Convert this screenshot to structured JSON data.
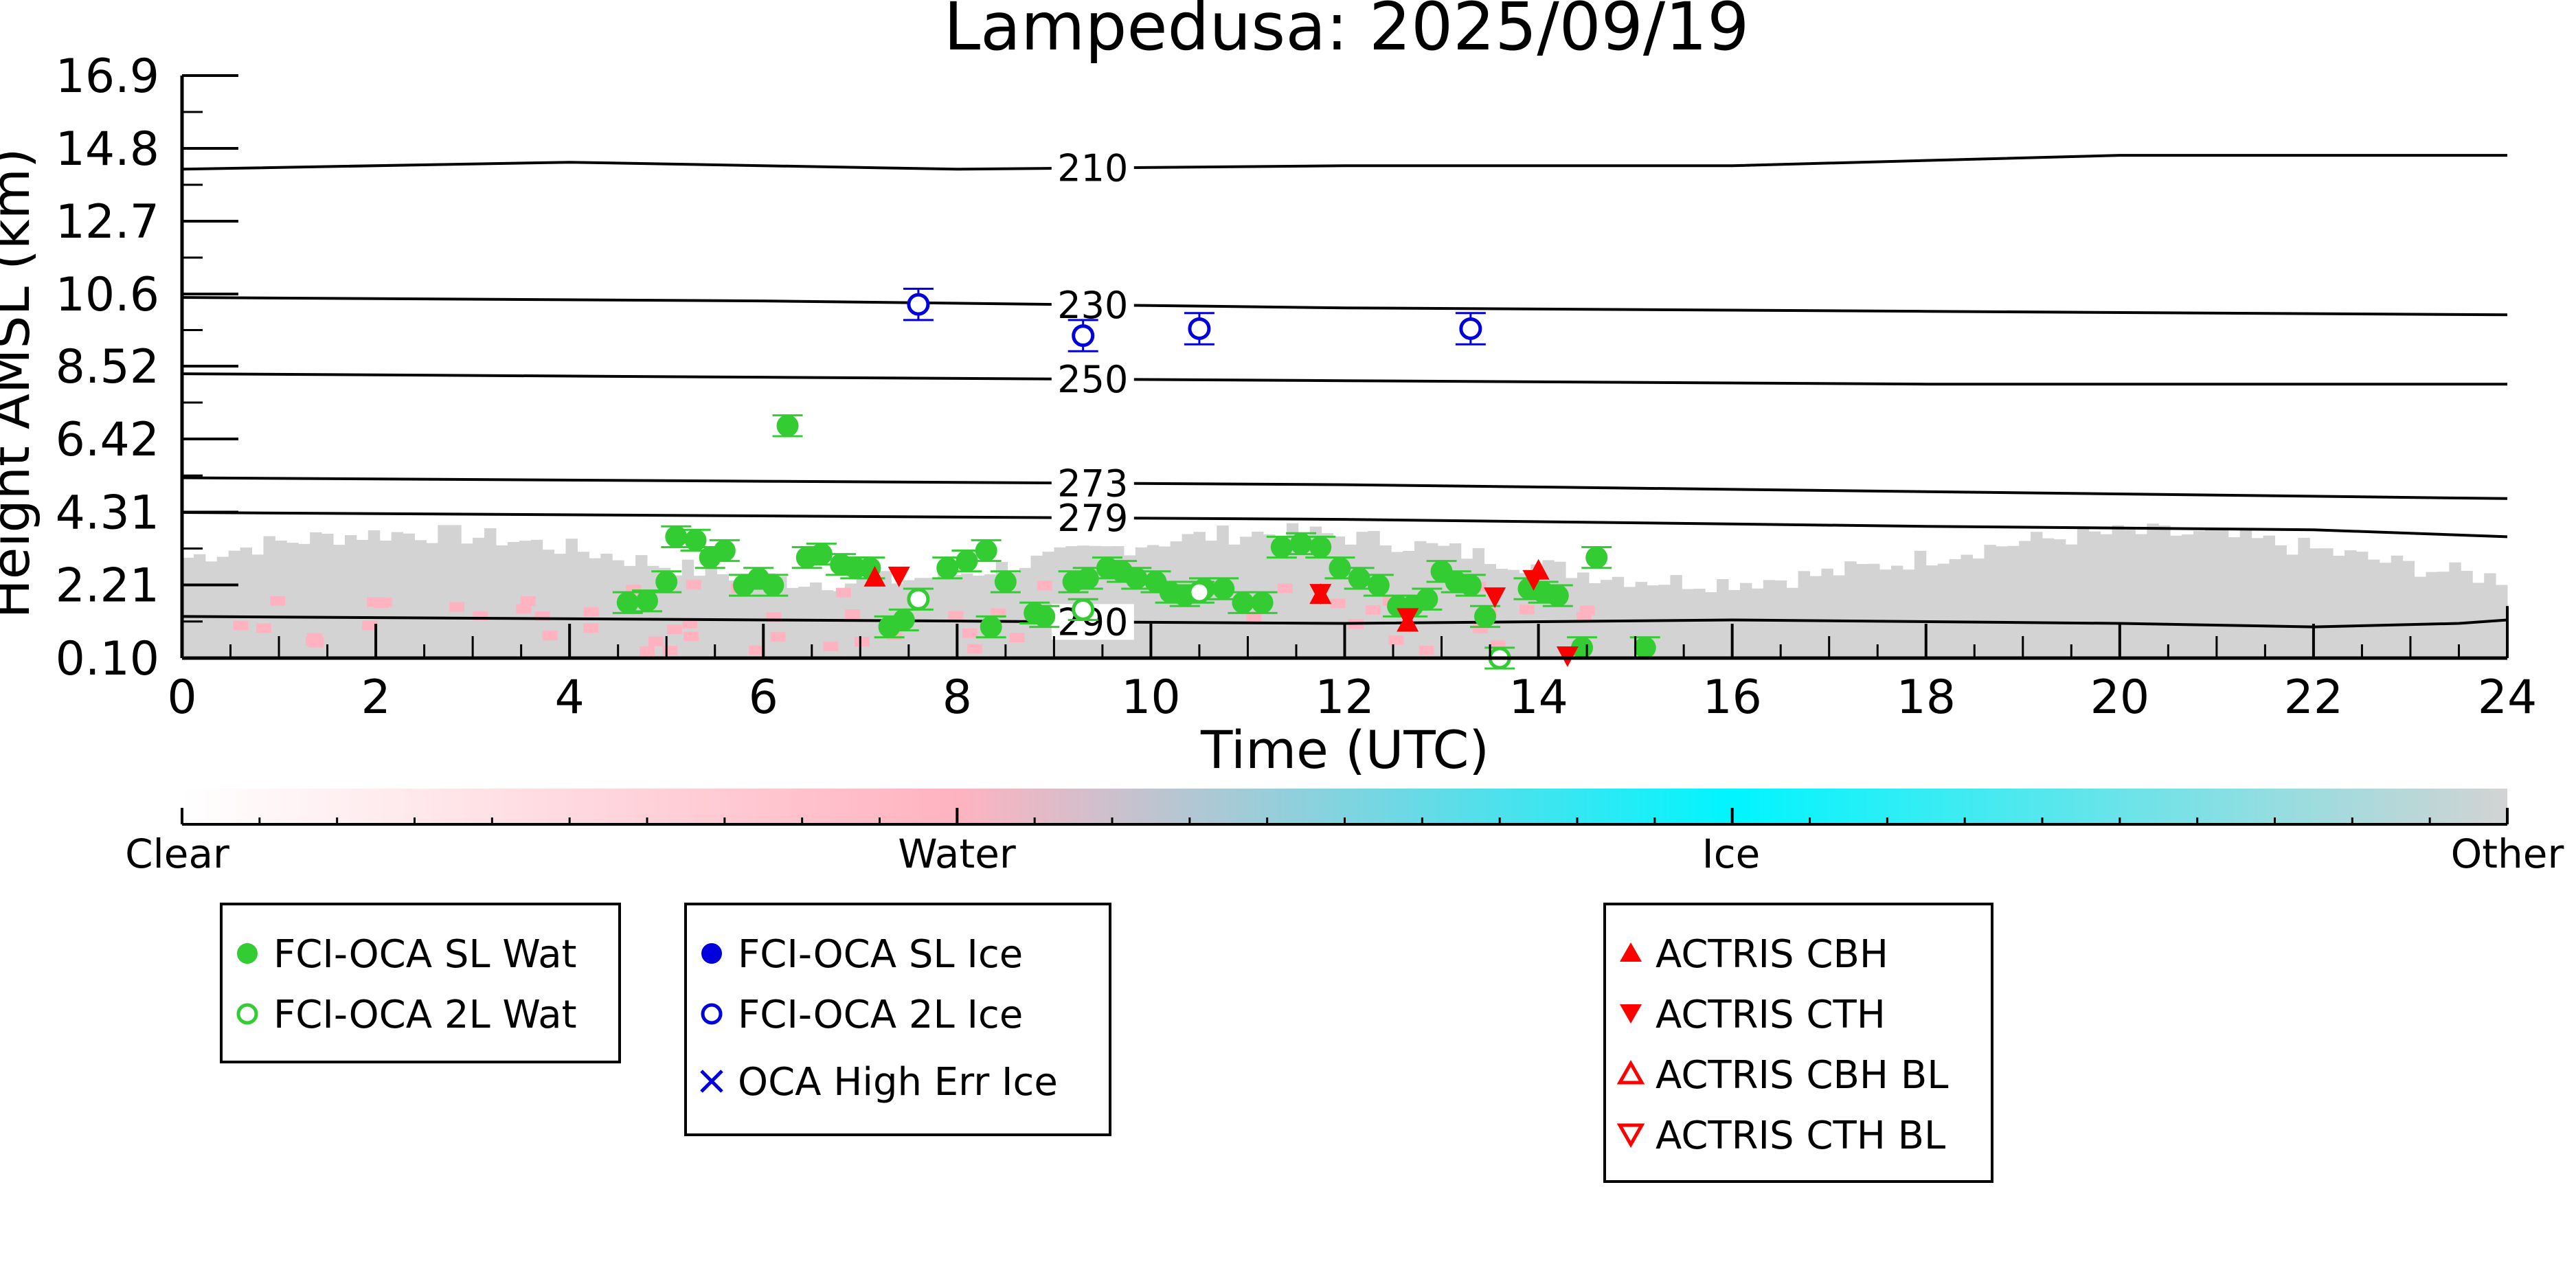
{
  "chart_data": {
    "type": "scatter",
    "title": "Lampedusa: 2025/09/19",
    "xlabel": "Time (UTC)",
    "ylabel": "Height AMSL (km)",
    "xlim": [
      0,
      24
    ],
    "ylim": [
      0.1,
      16.9
    ],
    "xticks": [
      "0",
      "2",
      "4",
      "6",
      "8",
      "10",
      "12",
      "14",
      "16",
      "18",
      "20",
      "22",
      "24"
    ],
    "yticks": [
      "16.9",
      "14.8",
      "12.7",
      "10.6",
      "8.52",
      "6.42",
      "4.31",
      "2.21",
      "0.10"
    ],
    "ytick_values": [
      16.9,
      14.8,
      12.7,
      10.6,
      8.52,
      6.42,
      4.31,
      2.21,
      0.1
    ],
    "background_curtain": {
      "top_km_range": [
        2.0,
        4.0
      ],
      "description_class": "Other / Water"
    },
    "isotherms": [
      {
        "label": "210",
        "points": [
          [
            0,
            14.2
          ],
          [
            4,
            14.4
          ],
          [
            8,
            14.2
          ],
          [
            12,
            14.3
          ],
          [
            16,
            14.3
          ],
          [
            20,
            14.6
          ],
          [
            24,
            14.6
          ]
        ]
      },
      {
        "label": "230",
        "points": [
          [
            0,
            10.5
          ],
          [
            6,
            10.4
          ],
          [
            12,
            10.2
          ],
          [
            18,
            10.1
          ],
          [
            24,
            10.0
          ]
        ]
      },
      {
        "label": "250",
        "points": [
          [
            0,
            8.3
          ],
          [
            6,
            8.2
          ],
          [
            12,
            8.1
          ],
          [
            18,
            8.0
          ],
          [
            24,
            8.0
          ]
        ]
      },
      {
        "label": "273",
        "points": [
          [
            0,
            5.3
          ],
          [
            6,
            5.2
          ],
          [
            12,
            5.1
          ],
          [
            18,
            4.9
          ],
          [
            24,
            4.7
          ]
        ]
      },
      {
        "label": "279",
        "points": [
          [
            0,
            4.3
          ],
          [
            6,
            4.2
          ],
          [
            12,
            4.1
          ],
          [
            18,
            3.9
          ],
          [
            22,
            3.8
          ],
          [
            24,
            3.6
          ]
        ]
      },
      {
        "label": "290",
        "points": [
          [
            0,
            1.3
          ],
          [
            6,
            1.2
          ],
          [
            12,
            1.1
          ],
          [
            16,
            1.2
          ],
          [
            20,
            1.1
          ],
          [
            22,
            1.0
          ],
          [
            23.5,
            1.1
          ],
          [
            24,
            1.2
          ]
        ]
      }
    ],
    "series": [
      {
        "name": "FCI-OCA SL Wat",
        "color": "#33cc33",
        "marker": "filled-circle",
        "points": [
          [
            4.6,
            1.7
          ],
          [
            4.8,
            1.75
          ],
          [
            5.0,
            2.3
          ],
          [
            5.1,
            3.6
          ],
          [
            5.3,
            3.5
          ],
          [
            5.45,
            3.0
          ],
          [
            5.6,
            3.2
          ],
          [
            5.8,
            2.2
          ],
          [
            5.95,
            2.4
          ],
          [
            6.1,
            2.2
          ],
          [
            6.25,
            6.8
          ],
          [
            6.45,
            3.0
          ],
          [
            6.6,
            3.1
          ],
          [
            6.8,
            2.8
          ],
          [
            6.95,
            2.7
          ],
          [
            7.1,
            2.7
          ],
          [
            7.3,
            1.0
          ],
          [
            7.45,
            1.2
          ],
          [
            7.9,
            2.7
          ],
          [
            8.1,
            2.9
          ],
          [
            8.3,
            3.2
          ],
          [
            8.35,
            1.0
          ],
          [
            8.5,
            2.3
          ],
          [
            8.8,
            1.4
          ],
          [
            8.9,
            1.3
          ],
          [
            9.2,
            2.3
          ],
          [
            9.35,
            2.4
          ],
          [
            9.55,
            2.7
          ],
          [
            9.7,
            2.6
          ],
          [
            9.85,
            2.4
          ],
          [
            10.05,
            2.3
          ],
          [
            10.2,
            2.0
          ],
          [
            10.35,
            1.9
          ],
          [
            10.55,
            2.1
          ],
          [
            10.75,
            2.1
          ],
          [
            10.95,
            1.7
          ],
          [
            11.15,
            1.7
          ],
          [
            11.35,
            3.3
          ],
          [
            11.55,
            3.4
          ],
          [
            11.75,
            3.3
          ],
          [
            11.95,
            2.7
          ],
          [
            12.15,
            2.4
          ],
          [
            12.35,
            2.2
          ],
          [
            12.55,
            1.6
          ],
          [
            12.7,
            1.6
          ],
          [
            12.85,
            1.8
          ],
          [
            13.0,
            2.6
          ],
          [
            13.15,
            2.3
          ],
          [
            13.3,
            2.2
          ],
          [
            13.45,
            1.3
          ],
          [
            13.9,
            2.1
          ],
          [
            14.05,
            2.0
          ],
          [
            14.2,
            1.9
          ],
          [
            14.45,
            0.4
          ],
          [
            14.6,
            3.0
          ],
          [
            15.1,
            0.4
          ]
        ]
      },
      {
        "name": "FCI-OCA 2L Wat",
        "color": "#33cc33",
        "marker": "open-circle",
        "points": [
          [
            7.6,
            1.8
          ],
          [
            9.3,
            1.5
          ],
          [
            10.5,
            2.0
          ],
          [
            13.6,
            0.1
          ]
        ]
      },
      {
        "name": "FCI-OCA SL Ice",
        "color": "#0000dd",
        "marker": "filled-circle",
        "points": []
      },
      {
        "name": "FCI-OCA 2L Ice",
        "color": "#0000dd",
        "marker": "open-circle",
        "points": [
          [
            7.6,
            10.3
          ],
          [
            9.3,
            9.4
          ],
          [
            10.5,
            9.6
          ],
          [
            13.3,
            9.6
          ]
        ]
      },
      {
        "name": "OCA High Err Ice",
        "color": "#0000dd",
        "marker": "x",
        "points": []
      },
      {
        "name": "ACTRIS CBH",
        "color": "#ff0000",
        "marker": "filled-triangle-up",
        "points": [
          [
            7.15,
            2.4
          ],
          [
            11.75,
            1.9
          ],
          [
            12.65,
            1.1
          ],
          [
            14.0,
            2.6
          ]
        ]
      },
      {
        "name": "ACTRIS CTH",
        "color": "#ff0000",
        "marker": "filled-triangle-down",
        "points": [
          [
            7.4,
            2.5
          ],
          [
            11.75,
            2.0
          ],
          [
            12.65,
            1.3
          ],
          [
            13.55,
            1.9
          ],
          [
            13.95,
            2.4
          ],
          [
            14.3,
            0.2
          ]
        ]
      },
      {
        "name": "ACTRIS CBH BL",
        "color": "#ff0000",
        "marker": "open-triangle-up",
        "points": []
      },
      {
        "name": "ACTRIS CTH BL",
        "color": "#ff0000",
        "marker": "open-triangle-down",
        "points": []
      }
    ],
    "colorbar": {
      "labels": [
        "Clear",
        "Water",
        "Ice",
        "Other"
      ],
      "colors": [
        "#ffffff",
        "#ffb3c0",
        "#00f5ff",
        "#d3d3d3"
      ]
    }
  }
}
